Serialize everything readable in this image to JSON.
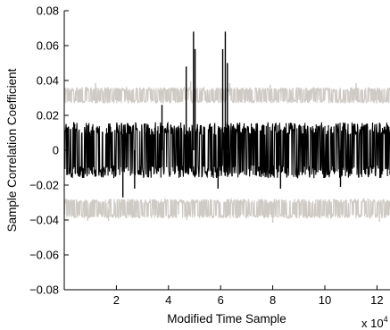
{
  "chart_data": {
    "type": "line",
    "xlabel": "Modified Time Sample",
    "ylabel": "Sample Correlation Coefficient",
    "x_exponent_label": "x 10",
    "x_exponent_power": "4",
    "xlim": [
      0,
      125000
    ],
    "ylim": [
      -0.08,
      0.08
    ],
    "x_ticks": [
      20000,
      40000,
      60000,
      80000,
      100000,
      120000
    ],
    "x_tick_labels": [
      "2",
      "4",
      "6",
      "8",
      "10",
      "12"
    ],
    "y_ticks": [
      -0.08,
      -0.06,
      -0.04,
      -0.02,
      0,
      0.02,
      0.04,
      0.06,
      0.08
    ],
    "y_tick_labels": [
      "−0.08",
      "−0.06",
      "−0.04",
      "−0.02",
      "0",
      "0.02",
      "0.04",
      "0.06",
      "0.08"
    ],
    "grid": false,
    "series": [
      {
        "role": "threshold-upper",
        "color": "#cfcac4",
        "band_low": 0.027,
        "band_high": 0.036,
        "spikes": [
          {
            "x": 12000,
            "y": 0.0385
          },
          {
            "x": 48500,
            "y": 0.0395
          },
          {
            "x": 63500,
            "y": 0.0385
          },
          {
            "x": 79000,
            "y": 0.0375
          },
          {
            "x": 112000,
            "y": 0.0385
          }
        ]
      },
      {
        "role": "threshold-lower",
        "color": "#cfcac4",
        "band_low": -0.039,
        "band_high": -0.028,
        "spikes": [
          {
            "x": 9000,
            "y": -0.0405
          },
          {
            "x": 17000,
            "y": -0.0405
          },
          {
            "x": 47000,
            "y": -0.04
          },
          {
            "x": 80000,
            "y": -0.0415
          },
          {
            "x": 121000,
            "y": -0.041
          }
        ]
      },
      {
        "role": "correlation",
        "color": "#000000",
        "band_low": -0.016,
        "band_high": 0.016,
        "spikes": [
          {
            "x": 46800,
            "y": 0.048
          },
          {
            "x": 49600,
            "y": 0.068
          },
          {
            "x": 50200,
            "y": 0.058
          },
          {
            "x": 60800,
            "y": 0.058
          },
          {
            "x": 61800,
            "y": 0.068
          },
          {
            "x": 62600,
            "y": 0.05
          },
          {
            "x": 37500,
            "y": 0.026
          },
          {
            "x": 22500,
            "y": -0.027
          },
          {
            "x": 27000,
            "y": -0.022
          },
          {
            "x": 59000,
            "y": -0.022
          },
          {
            "x": 83000,
            "y": -0.022
          },
          {
            "x": 106000,
            "y": -0.021
          }
        ]
      }
    ]
  }
}
